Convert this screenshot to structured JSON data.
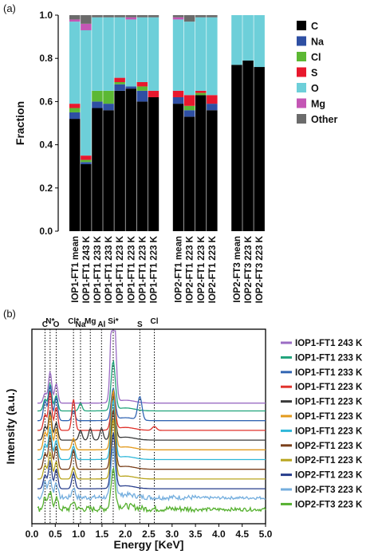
{
  "panels": {
    "a": "(a)",
    "b": "(b)"
  },
  "chart_data": [
    {
      "type": "bar",
      "stacked": true,
      "ylabel": "Fraction",
      "ylim": [
        0,
        1.0
      ],
      "yticks": [
        "0.0",
        "0.2",
        "0.4",
        "0.6",
        "0.8",
        "1.0"
      ],
      "components": [
        "C",
        "Na",
        "Cl",
        "S",
        "O",
        "Mg",
        "Other"
      ],
      "colors": {
        "C": "#000000",
        "Na": "#2e4fa3",
        "Cl": "#5cb833",
        "S": "#e8182d",
        "O": "#6dcfd9",
        "Mg": "#c456b5",
        "Other": "#6b6b6b"
      },
      "legend_placement": "right",
      "groups": [
        {
          "categories": [
            "IOP1-FT1 mean",
            "IOP1-FT1 243 K",
            "IOP1-FT1 233 K",
            "IOP1-FT1 233 K",
            "IOP1-FT1 223 K",
            "IOP1-FT1 223 K",
            "IOP1-FT1 223 K",
            "IOP1-FT1 223 K"
          ],
          "stacks": [
            {
              "C": 0.52,
              "Na": 0.03,
              "Cl": 0.02,
              "S": 0.02,
              "O": 0.38,
              "Mg": 0.01,
              "Other": 0.02
            },
            {
              "C": 0.31,
              "Na": 0.01,
              "Cl": 0.01,
              "S": 0.02,
              "O": 0.58,
              "Mg": 0.03,
              "Other": 0.04
            },
            {
              "C": 0.57,
              "Na": 0.03,
              "Cl": 0.05,
              "S": 0.0,
              "O": 0.34,
              "Mg": 0.0,
              "Other": 0.01
            },
            {
              "C": 0.56,
              "Na": 0.03,
              "Cl": 0.06,
              "S": 0.0,
              "O": 0.34,
              "Mg": 0.0,
              "Other": 0.01
            },
            {
              "C": 0.65,
              "Na": 0.03,
              "Cl": 0.01,
              "S": 0.02,
              "O": 0.28,
              "Mg": 0.0,
              "Other": 0.01
            },
            {
              "C": 0.66,
              "Na": 0.01,
              "Cl": 0.0,
              "S": 0.0,
              "O": 0.31,
              "Mg": 0.01,
              "Other": 0.01
            },
            {
              "C": 0.6,
              "Na": 0.05,
              "Cl": 0.02,
              "S": 0.02,
              "O": 0.3,
              "Mg": 0.0,
              "Other": 0.01
            },
            {
              "C": 0.62,
              "Na": 0.0,
              "Cl": 0.0,
              "S": 0.03,
              "O": 0.34,
              "Mg": 0.0,
              "Other": 0.01
            }
          ]
        },
        {
          "categories": [
            "IOP2-FT1 mean",
            "IOP2-FT1 223 K",
            "IOP2-FT1 223 K",
            "IOP2-FT1 223 K"
          ],
          "stacks": [
            {
              "C": 0.59,
              "Na": 0.03,
              "Cl": 0.0,
              "S": 0.03,
              "O": 0.33,
              "Mg": 0.01,
              "Other": 0.01
            },
            {
              "C": 0.53,
              "Na": 0.03,
              "Cl": 0.02,
              "S": 0.05,
              "O": 0.34,
              "Mg": 0.0,
              "Other": 0.03
            },
            {
              "C": 0.63,
              "Na": 0.0,
              "Cl": 0.01,
              "S": 0.01,
              "O": 0.34,
              "Mg": 0.0,
              "Other": 0.01
            },
            {
              "C": 0.56,
              "Na": 0.03,
              "Cl": 0.0,
              "S": 0.04,
              "O": 0.36,
              "Mg": 0.0,
              "Other": 0.01
            }
          ]
        },
        {
          "categories": [
            "IOP2-FT3 mean",
            "IOP2-FT3 223 K",
            "IOP2-FT3 223 K"
          ],
          "stacks": [
            {
              "C": 0.77,
              "Na": 0.0,
              "Cl": 0.0,
              "S": 0.0,
              "O": 0.23,
              "Mg": 0.0,
              "Other": 0.0
            },
            {
              "C": 0.79,
              "Na": 0.0,
              "Cl": 0.0,
              "S": 0.0,
              "O": 0.21,
              "Mg": 0.0,
              "Other": 0.0
            },
            {
              "C": 0.76,
              "Na": 0.0,
              "Cl": 0.0,
              "S": 0.0,
              "O": 0.24,
              "Mg": 0.0,
              "Other": 0.0
            }
          ]
        }
      ]
    },
    {
      "type": "line",
      "xlabel": "Energy [KeV]",
      "ylabel": "Intensity (a.u.)",
      "xlim": [
        0.0,
        5.0
      ],
      "xticks": [
        "0.0",
        "0.5",
        "1.0",
        "1.5",
        "2.0",
        "2.5",
        "3.0",
        "3.5",
        "4.0",
        "4.5",
        "5.0"
      ],
      "element_lines": [
        {
          "label": "C",
          "energy": 0.28
        },
        {
          "label": "N*",
          "energy": 0.39
        },
        {
          "label": "O",
          "energy": 0.52
        },
        {
          "label": "Cl*",
          "energy": 0.89
        },
        {
          "label": "Na",
          "energy": 1.04
        },
        {
          "label": "Mg",
          "energy": 1.25
        },
        {
          "label": "Al",
          "energy": 1.49
        },
        {
          "label": "Si*",
          "energy": 1.74
        },
        {
          "label": "S",
          "energy": 2.31
        },
        {
          "label": "Cl",
          "energy": 2.62
        }
      ],
      "legend_placement": "right",
      "series": [
        {
          "name": "IOP1-FT1 243 K",
          "color": "#9b6cc4",
          "baseline": 0.62,
          "peaks": [
            [
              0.28,
              0.05
            ],
            [
              0.39,
              0.16
            ],
            [
              0.52,
              0.1
            ],
            [
              1.74,
              0.72
            ]
          ],
          "noise": 0.0
        },
        {
          "name": "IOP1-FT1 233 K",
          "color": "#1fa37a",
          "baseline": 0.58,
          "peaks": [
            [
              0.28,
              0.06
            ],
            [
              0.39,
              0.14
            ],
            [
              0.52,
              0.08
            ],
            [
              1.04,
              0.04
            ],
            [
              1.74,
              0.25
            ]
          ],
          "noise": 0.0
        },
        {
          "name": "IOP1-FT1 233 K",
          "color": "#3366b3",
          "baseline": 0.53,
          "peaks": [
            [
              0.28,
              0.1
            ],
            [
              0.39,
              0.18
            ],
            [
              0.52,
              0.12
            ],
            [
              0.89,
              0.05
            ],
            [
              1.74,
              0.16
            ],
            [
              2.31,
              0.12
            ]
          ],
          "noise": 0.0
        },
        {
          "name": "IOP1-FT1 223 K",
          "color": "#e0322b",
          "baseline": 0.48,
          "peaks": [
            [
              0.28,
              0.08
            ],
            [
              0.39,
              0.2
            ],
            [
              0.52,
              0.12
            ],
            [
              0.89,
              0.16
            ],
            [
              1.74,
              0.18
            ],
            [
              2.62,
              0.02
            ]
          ],
          "noise": 0.0
        },
        {
          "name": "IOP1-FT1 223 K",
          "color": "#3a3a3a",
          "baseline": 0.43,
          "peaks": [
            [
              0.28,
              0.07
            ],
            [
              0.39,
              0.15
            ],
            [
              0.52,
              0.09
            ],
            [
              1.04,
              0.05
            ],
            [
              1.25,
              0.06
            ],
            [
              1.49,
              0.06
            ],
            [
              1.74,
              0.22
            ]
          ],
          "noise": 0.0
        },
        {
          "name": "IOP1-FT1 223 K",
          "color": "#e39a1c",
          "baseline": 0.38,
          "peaks": [
            [
              0.28,
              0.09
            ],
            [
              0.39,
              0.18
            ],
            [
              0.52,
              0.11
            ],
            [
              0.89,
              0.06
            ],
            [
              1.74,
              0.3
            ]
          ],
          "noise": 0.0
        },
        {
          "name": "IOP1-FT1 223 K",
          "color": "#2fb7d9",
          "baseline": 0.33,
          "peaks": [
            [
              0.28,
              0.08
            ],
            [
              0.39,
              0.16
            ],
            [
              0.52,
              0.1
            ],
            [
              0.89,
              0.07
            ],
            [
              1.74,
              0.3
            ]
          ],
          "noise": 0.0
        },
        {
          "name": "IOP2-FT1 223 K",
          "color": "#7a3f1a",
          "baseline": 0.28,
          "peaks": [
            [
              0.28,
              0.08
            ],
            [
              0.39,
              0.17
            ],
            [
              0.52,
              0.12
            ],
            [
              0.89,
              0.1
            ],
            [
              1.74,
              0.3
            ]
          ],
          "noise": 0.0
        },
        {
          "name": "IOP2-FT1 223 K",
          "color": "#b9a51f",
          "baseline": 0.23,
          "peaks": [
            [
              0.28,
              0.07
            ],
            [
              0.39,
              0.14
            ],
            [
              0.52,
              0.09
            ],
            [
              0.89,
              0.06
            ],
            [
              1.74,
              0.3
            ]
          ],
          "noise": 0.0
        },
        {
          "name": "IOP2-FT1 223 K",
          "color": "#273d8c",
          "baseline": 0.18,
          "peaks": [
            [
              0.28,
              0.07
            ],
            [
              0.39,
              0.14
            ],
            [
              0.52,
              0.1
            ],
            [
              0.89,
              0.08
            ],
            [
              1.74,
              0.28
            ]
          ],
          "noise": 0.0
        },
        {
          "name": "IOP2-FT3 223 K",
          "color": "#74aede",
          "baseline": 0.13,
          "peaks": [
            [
              0.28,
              0.08
            ],
            [
              0.39,
              0.1
            ],
            [
              0.52,
              0.08
            ],
            [
              0.89,
              0.05
            ],
            [
              1.74,
              0.25
            ]
          ],
          "noise": 0.025
        },
        {
          "name": "IOP2-FT3 223 K",
          "color": "#55b02f",
          "baseline": 0.07,
          "peaks": [
            [
              0.28,
              0.06
            ],
            [
              0.39,
              0.08
            ],
            [
              0.52,
              0.06
            ],
            [
              0.89,
              0.04
            ],
            [
              1.74,
              0.2
            ]
          ],
          "noise": 0.03
        }
      ]
    }
  ]
}
